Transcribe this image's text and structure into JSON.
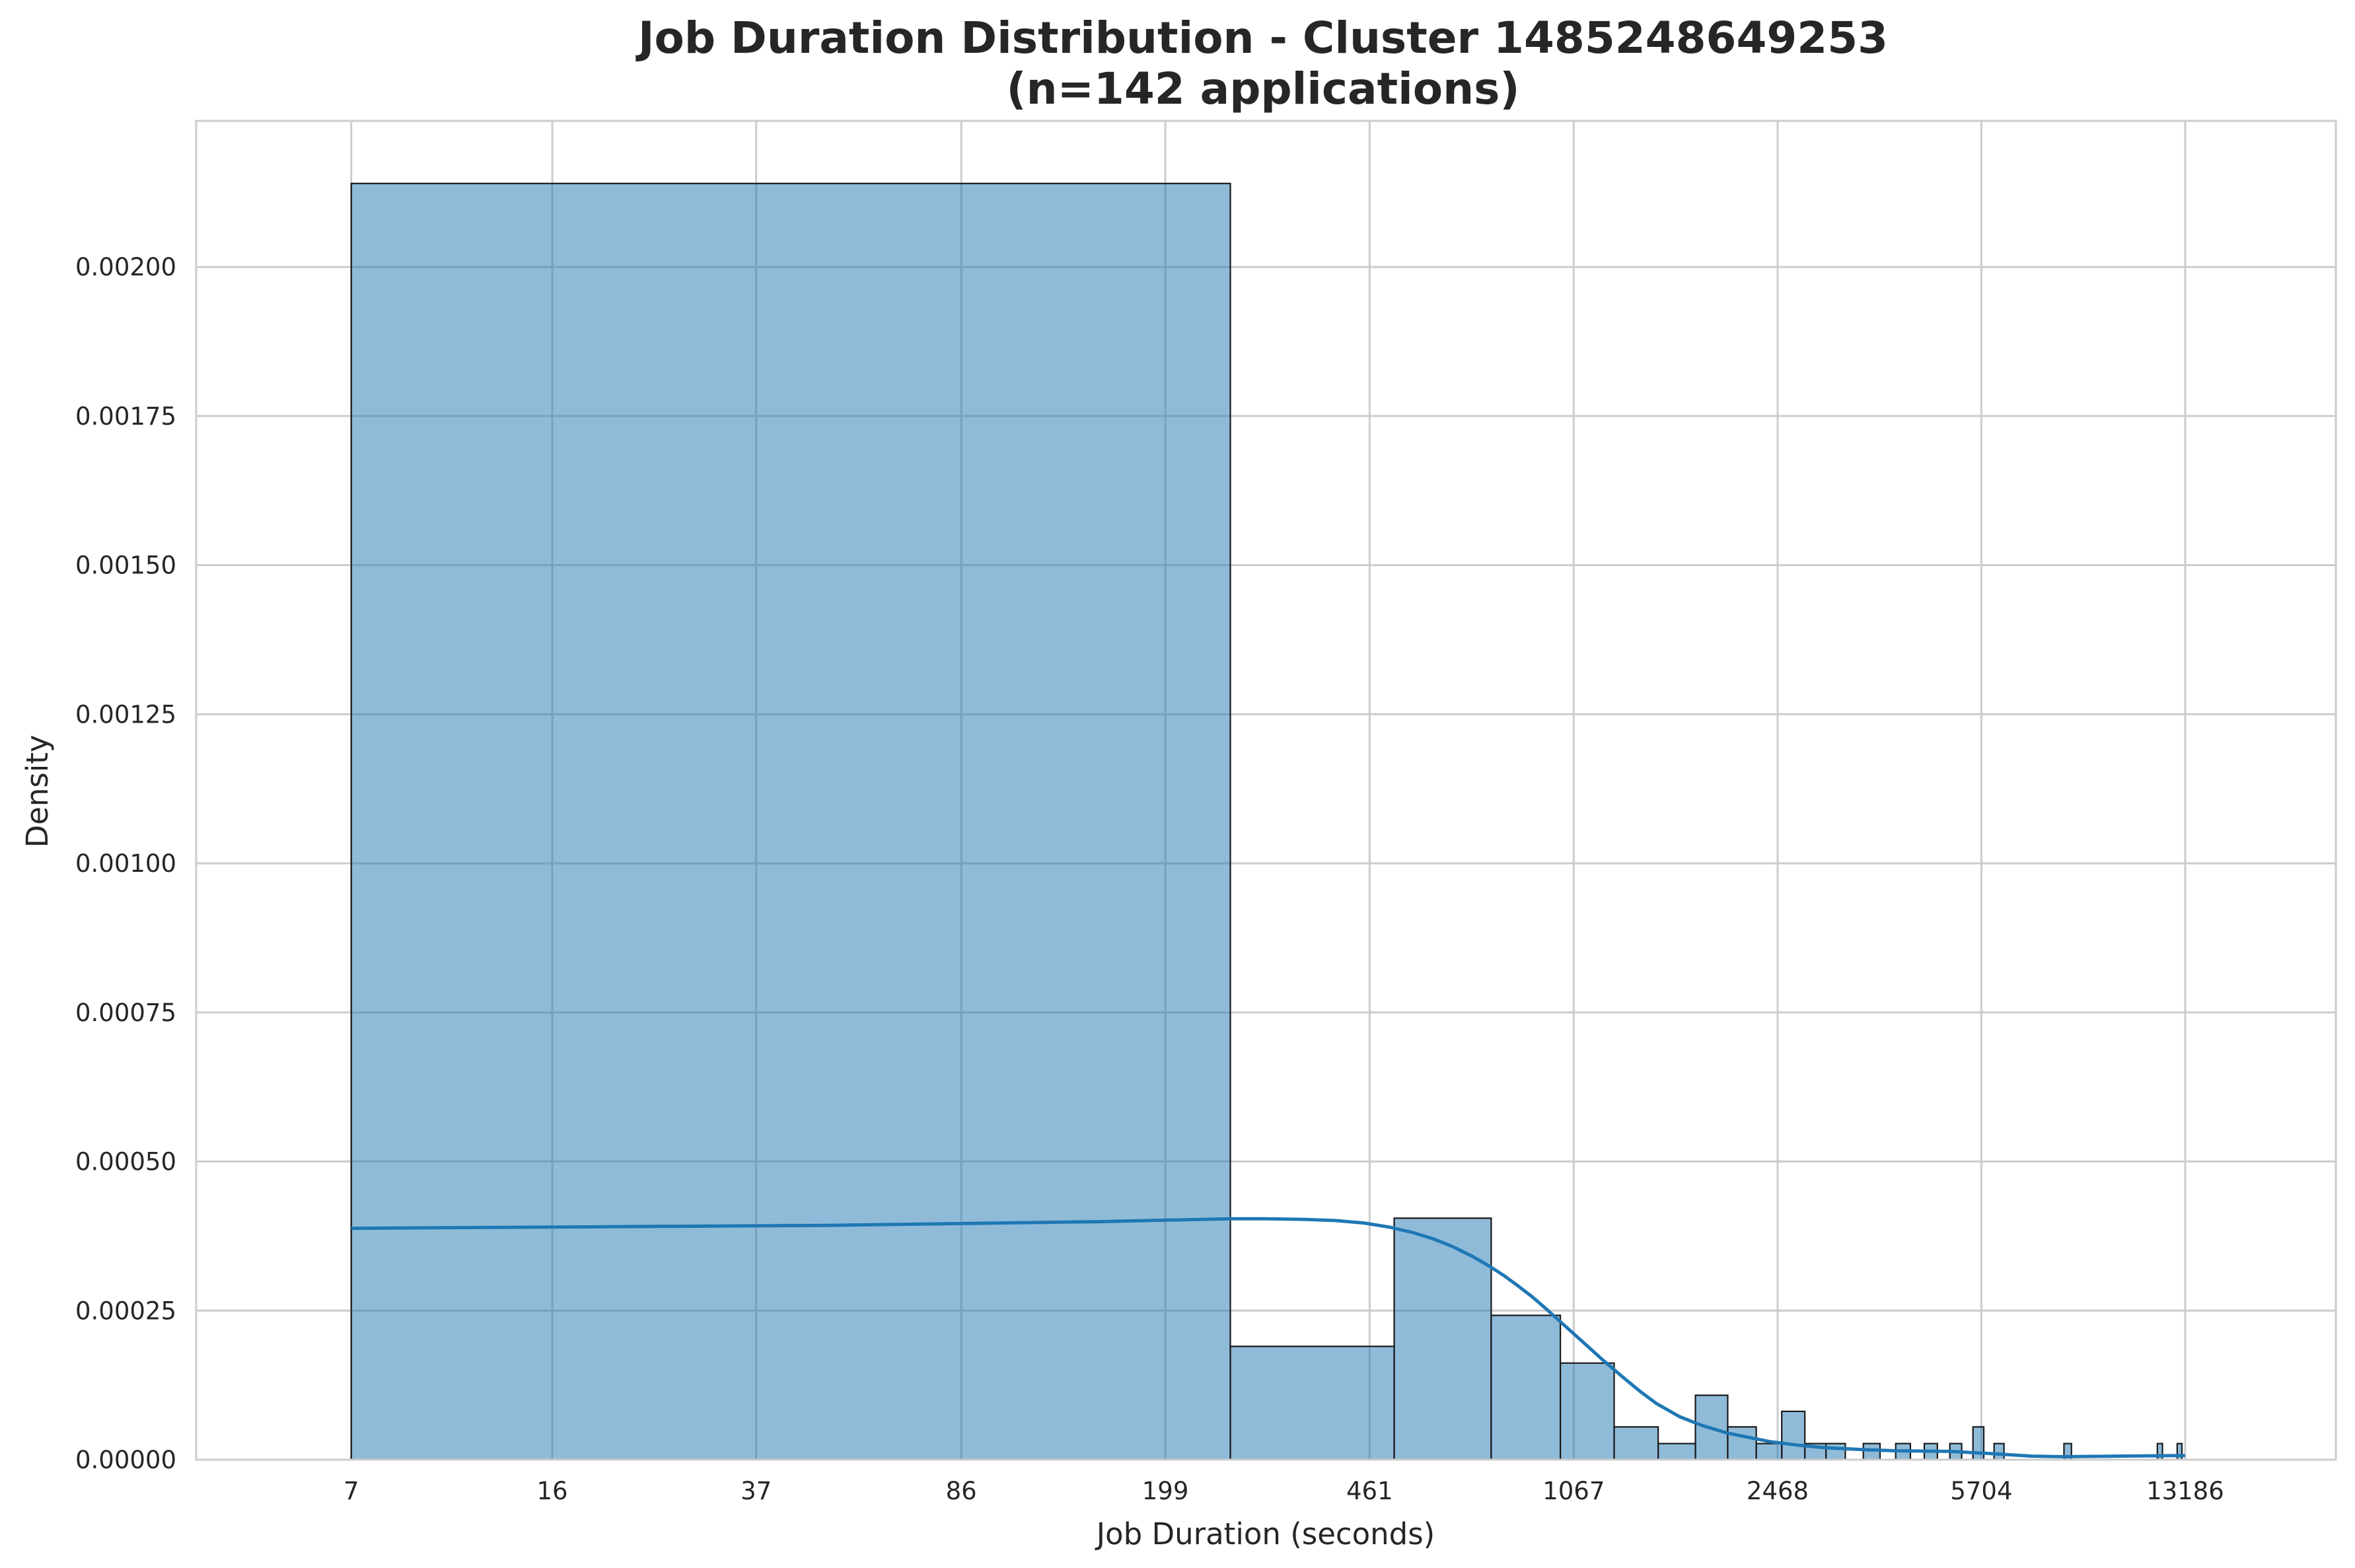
{
  "chart_data": {
    "type": "bar",
    "title_line1": "Job Duration Distribution - Cluster 1485248649253",
    "title_line2": "(n=142 applications)",
    "xlabel": "Job Duration (seconds)",
    "ylabel": "Density",
    "x_scale": "log",
    "xlim": [
      3.7,
      24500
    ],
    "ylim": [
      0,
      0.002245
    ],
    "grid": true,
    "x_ticks": [
      7,
      16,
      37,
      86,
      199,
      461,
      1067,
      2468,
      5704,
      13186
    ],
    "y_ticks": [
      0.0,
      0.00025,
      0.0005,
      0.00075,
      0.001,
      0.00125,
      0.0015,
      0.00175,
      0.002
    ],
    "y_tick_labels": [
      "0.00000",
      "0.00025",
      "0.00050",
      "0.00075",
      "0.00100",
      "0.00125",
      "0.00150",
      "0.00175",
      "0.00200"
    ],
    "colors": {
      "bar_fill": "#1f77b4",
      "kde": "#1f77b4",
      "edge": "#1a1a1a"
    },
    "bins": [
      {
        "x0": 7,
        "x1": 260,
        "density": 0.00214
      },
      {
        "x0": 260,
        "x1": 510,
        "density": 0.00019
      },
      {
        "x0": 510,
        "x1": 760,
        "density": 0.000405
      },
      {
        "x0": 760,
        "x1": 1010,
        "density": 0.000242
      },
      {
        "x0": 1010,
        "x1": 1260,
        "density": 0.000162
      },
      {
        "x0": 1260,
        "x1": 1510,
        "density": 5.5e-05
      },
      {
        "x0": 1510,
        "x1": 1760,
        "density": 2.7e-05
      },
      {
        "x0": 1760,
        "x1": 2010,
        "density": 0.000108
      },
      {
        "x0": 2010,
        "x1": 2260,
        "density": 5.5e-05
      },
      {
        "x0": 2260,
        "x1": 2510,
        "density": 2.7e-05
      },
      {
        "x0": 2510,
        "x1": 2760,
        "density": 8.1e-05
      },
      {
        "x0": 2760,
        "x1": 3010,
        "density": 2.7e-05
      },
      {
        "x0": 3010,
        "x1": 3260,
        "density": 2.7e-05
      },
      {
        "x0": 3510,
        "x1": 3760,
        "density": 2.7e-05
      },
      {
        "x0": 4010,
        "x1": 4260,
        "density": 2.7e-05
      },
      {
        "x0": 4510,
        "x1": 4760,
        "density": 2.7e-05
      },
      {
        "x0": 5010,
        "x1": 5260,
        "density": 2.7e-05
      },
      {
        "x0": 5510,
        "x1": 5760,
        "density": 5.5e-05
      },
      {
        "x0": 6010,
        "x1": 6260,
        "density": 2.7e-05
      },
      {
        "x0": 8010,
        "x1": 8260,
        "density": 2.7e-05
      },
      {
        "x0": 11760,
        "x1": 12010,
        "density": 2.7e-05
      },
      {
        "x0": 12760,
        "x1": 13010,
        "density": 2.7e-05
      }
    ],
    "kde": {
      "x": [
        7,
        50,
        150,
        260,
        300,
        350,
        400,
        450,
        500,
        550,
        600,
        650,
        700,
        750,
        800,
        850,
        900,
        950,
        1000,
        1100,
        1200,
        1300,
        1400,
        1500,
        1650,
        1800,
        2000,
        2200,
        2400,
        2700,
        3000,
        3500,
        4000,
        5000,
        6000,
        7000,
        8000,
        10000,
        13186
      ],
      "y": [
        0.000388,
        0.000393,
        0.000399,
        0.000404,
        0.000404,
        0.000403,
        0.000401,
        0.000397,
        0.00039,
        0.000381,
        0.00037,
        0.000357,
        0.000342,
        0.000326,
        0.000309,
        0.000291,
        0.000273,
        0.000254,
        0.000235,
        0.0002,
        0.000168,
        0.00014,
        0.000115,
        9.4e-05,
        7.2e-05,
        5.8e-05,
        4.5e-05,
        3.7e-05,
        3e-05,
        2.4e-05,
        2e-05,
        1.7e-05,
        1.5e-05,
        1.4e-05,
        1e-05,
        6e-06,
        5e-06,
        6e-06,
        7e-06
      ]
    }
  }
}
